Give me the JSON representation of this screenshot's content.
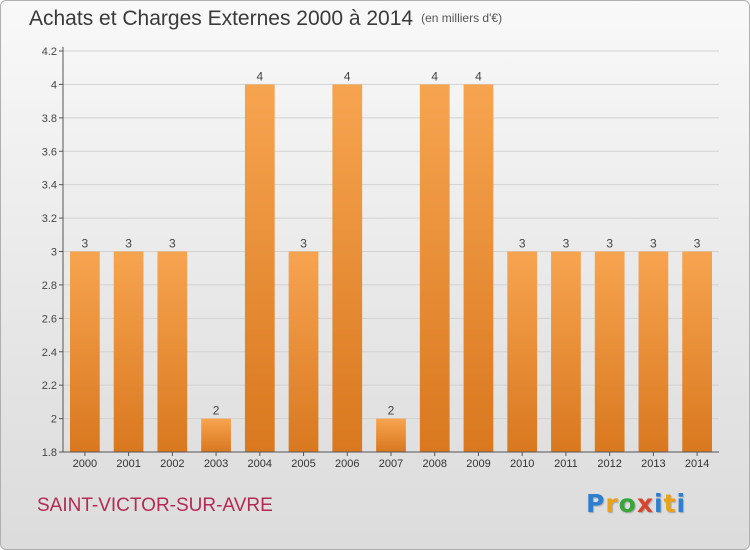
{
  "header": {
    "title": "Achats et Charges Externes 2000 à 2014",
    "subtitle": "(en milliers d'€)"
  },
  "footer": {
    "commune": "SAINT-VICTOR-SUR-AVRE",
    "logo": "Proxiti"
  },
  "colors": {
    "bar_top": "#f7a450",
    "bar_bottom": "#d9781f",
    "commune_text": "#b42a55"
  },
  "chart_data": {
    "type": "bar",
    "title": "Achats et Charges Externes 2000 à 2014",
    "subtitle": "(en milliers d'€)",
    "categories": [
      "2000",
      "2001",
      "2002",
      "2003",
      "2004",
      "2005",
      "2006",
      "2007",
      "2008",
      "2009",
      "2010",
      "2011",
      "2012",
      "2013",
      "2014"
    ],
    "values": [
      3,
      3,
      3,
      2,
      4,
      3,
      4,
      2,
      4,
      4,
      3,
      3,
      3,
      3,
      3
    ],
    "data_labels": [
      "3",
      "3",
      "3",
      "2",
      "4",
      "3",
      "4",
      "2",
      "4",
      "4",
      "3",
      "3",
      "3",
      "3",
      "3"
    ],
    "ylim": [
      1.8,
      4.2
    ],
    "yticks": [
      "1.8",
      "2",
      "2.2",
      "2.4",
      "2.6",
      "2.8",
      "3",
      "3.2",
      "3.4",
      "3.6",
      "3.8",
      "4",
      "4.2"
    ],
    "xlabel": "",
    "ylabel": "",
    "grid": true,
    "legend": "none"
  }
}
